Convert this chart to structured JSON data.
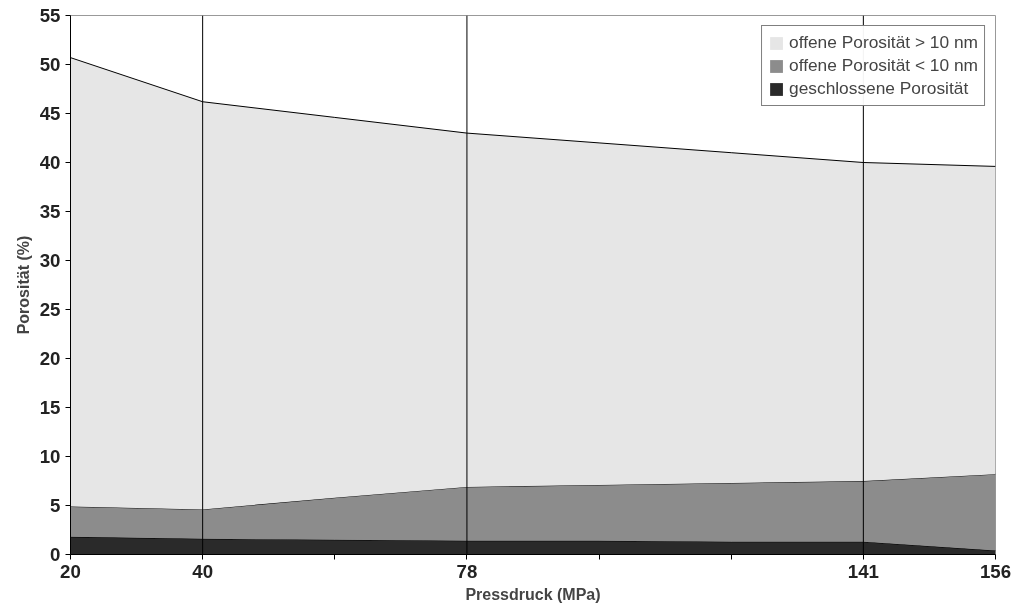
{
  "chart_data": {
    "type": "area",
    "stacked": true,
    "xlabel": "Pressdruck (MPa)",
    "ylabel": "Porosität (%)",
    "categories": [
      "20",
      "40",
      null,
      "78",
      null,
      null,
      "141",
      "156"
    ],
    "series": [
      {
        "name": "geschlossene Porosität",
        "color": "#2a2a2a",
        "values": [
          1.8,
          1.6,
          1.5,
          1.4,
          1.4,
          1.3,
          1.3,
          0.4
        ]
      },
      {
        "name": "offene Porosität < 10 nm",
        "color": "#8c8c8c",
        "values": [
          3.1,
          3.0,
          4.3,
          5.5,
          5.7,
          6.0,
          6.2,
          7.8
        ]
      },
      {
        "name": "offene Porosität > 10 nm",
        "color": "#e6e6e6",
        "values": [
          45.8,
          41.6,
          38.8,
          36.1,
          34.9,
          33.7,
          32.5,
          31.4
        ]
      }
    ],
    "ylim": [
      0,
      55
    ],
    "yticks": [
      0,
      5,
      10,
      15,
      20,
      25,
      30,
      35,
      40,
      45,
      50,
      55
    ],
    "ref_lines": [
      {
        "axis": "x",
        "value": "40",
        "color": "#000000"
      },
      {
        "axis": "x",
        "value": "78",
        "color": "#000000"
      },
      {
        "axis": "x",
        "value": "141",
        "color": "#000000"
      }
    ],
    "legend": "top right"
  }
}
